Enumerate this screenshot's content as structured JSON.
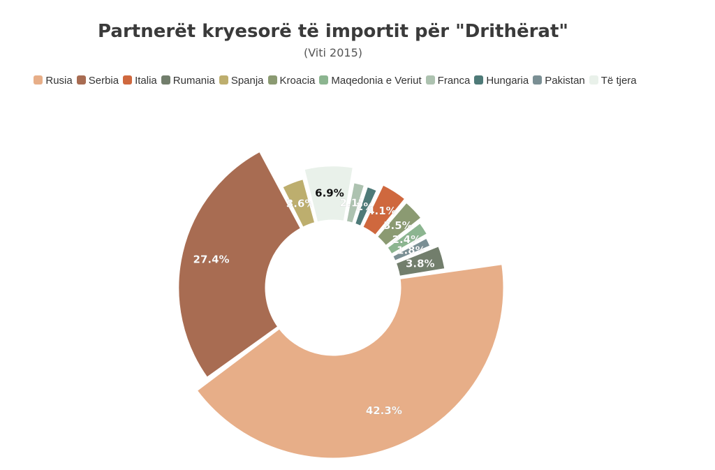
{
  "chart_data": {
    "type": "pie",
    "title": "Partnerët kryesorë të importit për \"Drithërat\"",
    "subtitle": "(Viti 2015)",
    "legend_position": "top",
    "donut": true,
    "slices": [
      {
        "name": "Rusia",
        "value": 42.3,
        "label": "42.3%",
        "color": "#e7ae88"
      },
      {
        "name": "Serbia",
        "value": 27.4,
        "label": "27.4%",
        "color": "#a86c52"
      },
      {
        "name": "Spanja",
        "value": 3.6,
        "label": "3.6%",
        "color": "#bdae6e"
      },
      {
        "name": "Të tjera",
        "value": 6.9,
        "label": "6.9%",
        "color": "#e9f1ea"
      },
      {
        "name": "Franca",
        "value": 2.1,
        "label": "2.1%",
        "color": "#adc2b0"
      },
      {
        "name": "Hungaria",
        "value": 2.0,
        "label": "2%",
        "color": "#4e7a78"
      },
      {
        "name": "Italia",
        "value": 4.1,
        "label": "4.1%",
        "color": "#cf683e"
      },
      {
        "name": "Kroacia",
        "value": 3.5,
        "label": "3.5%",
        "color": "#8b9a72"
      },
      {
        "name": "Maqedonia e Veriut",
        "value": 2.4,
        "label": "2.4%",
        "color": "#8cb590"
      },
      {
        "name": "Pakistan",
        "value": 1.8,
        "label": "1.8%",
        "color": "#7a8f94"
      },
      {
        "name": "Rumania",
        "value": 3.8,
        "label": "3.8%",
        "color": "#727e6c"
      }
    ]
  },
  "legend": [
    {
      "name": "Rusia",
      "color": "#e7ae88"
    },
    {
      "name": "Serbia",
      "color": "#a86c52"
    },
    {
      "name": "Italia",
      "color": "#cf683e"
    },
    {
      "name": "Rumania",
      "color": "#727e6c"
    },
    {
      "name": "Spanja",
      "color": "#bdae6e"
    },
    {
      "name": "Kroacia",
      "color": "#8b9a72"
    },
    {
      "name": "Maqedonia e Veriut",
      "color": "#8cb590"
    },
    {
      "name": "Franca",
      "color": "#adc2b0"
    },
    {
      "name": "Hungaria",
      "color": "#4e7a78"
    },
    {
      "name": "Pakistan",
      "color": "#7a8f94"
    },
    {
      "name": "Të tjera",
      "color": "#e9f1ea"
    }
  ]
}
